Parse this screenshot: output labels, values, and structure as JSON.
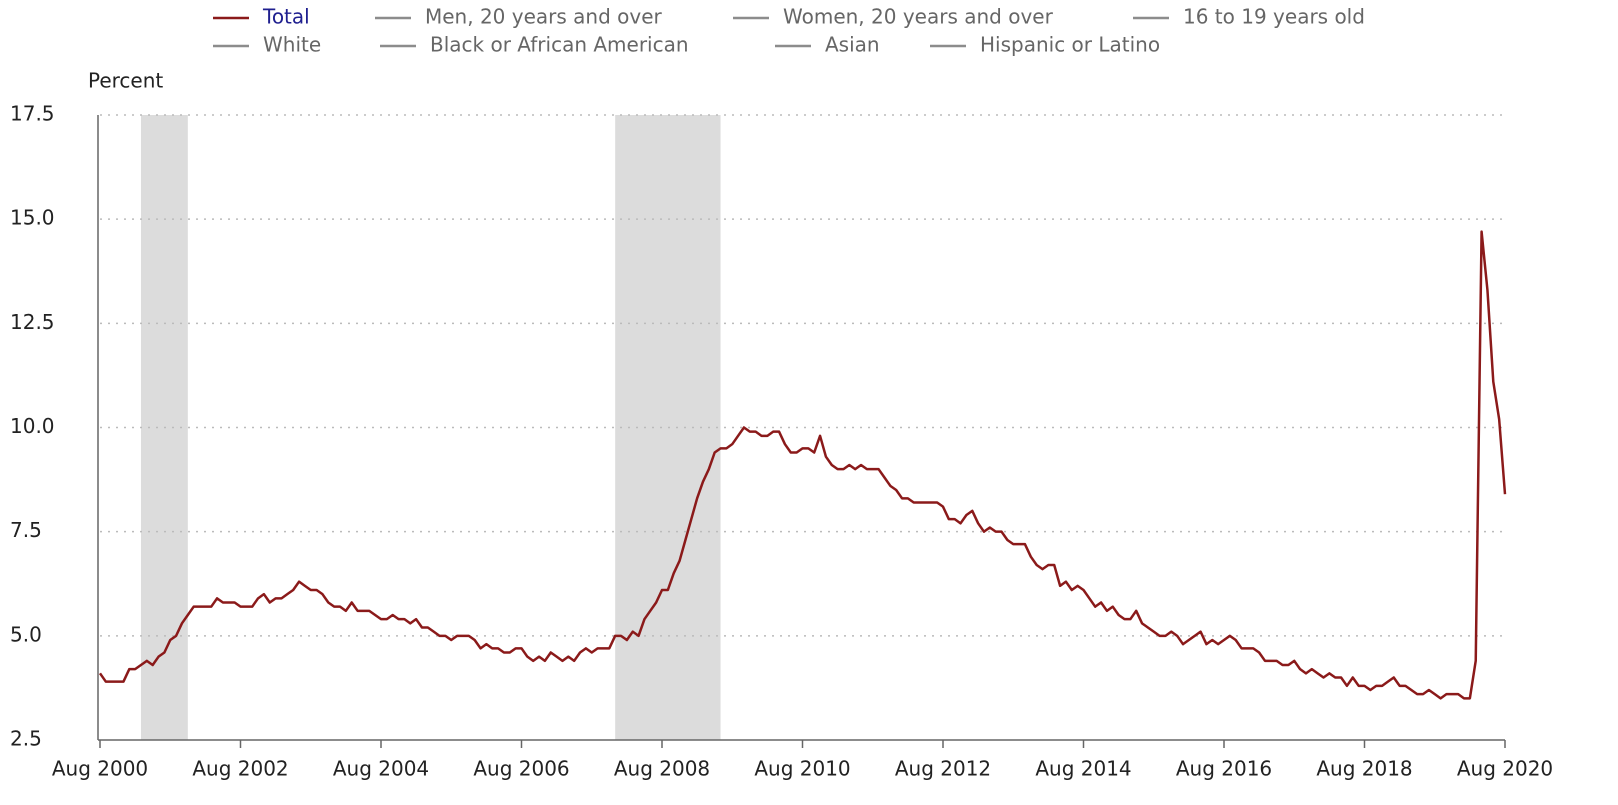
{
  "chart_data": {
    "type": "line",
    "ylabel": "Percent",
    "x": [
      "2000-08",
      "2000-09",
      "2000-10",
      "2000-11",
      "2000-12",
      "2001-01",
      "2001-02",
      "2001-03",
      "2001-04",
      "2001-05",
      "2001-06",
      "2001-07",
      "2001-08",
      "2001-09",
      "2001-10",
      "2001-11",
      "2001-12",
      "2002-01",
      "2002-02",
      "2002-03",
      "2002-04",
      "2002-05",
      "2002-06",
      "2002-07",
      "2002-08",
      "2002-09",
      "2002-10",
      "2002-11",
      "2002-12",
      "2003-01",
      "2003-02",
      "2003-03",
      "2003-04",
      "2003-05",
      "2003-06",
      "2003-07",
      "2003-08",
      "2003-09",
      "2003-10",
      "2003-11",
      "2003-12",
      "2004-01",
      "2004-02",
      "2004-03",
      "2004-04",
      "2004-05",
      "2004-06",
      "2004-07",
      "2004-08",
      "2004-09",
      "2004-10",
      "2004-11",
      "2004-12",
      "2005-01",
      "2005-02",
      "2005-03",
      "2005-04",
      "2005-05",
      "2005-06",
      "2005-07",
      "2005-08",
      "2005-09",
      "2005-10",
      "2005-11",
      "2005-12",
      "2006-01",
      "2006-02",
      "2006-03",
      "2006-04",
      "2006-05",
      "2006-06",
      "2006-07",
      "2006-08",
      "2006-09",
      "2006-10",
      "2006-11",
      "2006-12",
      "2007-01",
      "2007-02",
      "2007-03",
      "2007-04",
      "2007-05",
      "2007-06",
      "2007-07",
      "2007-08",
      "2007-09",
      "2007-10",
      "2007-11",
      "2007-12",
      "2008-01",
      "2008-02",
      "2008-03",
      "2008-04",
      "2008-05",
      "2008-06",
      "2008-07",
      "2008-08",
      "2008-09",
      "2008-10",
      "2008-11",
      "2008-12",
      "2009-01",
      "2009-02",
      "2009-03",
      "2009-04",
      "2009-05",
      "2009-06",
      "2009-07",
      "2009-08",
      "2009-09",
      "2009-10",
      "2009-11",
      "2009-12",
      "2010-01",
      "2010-02",
      "2010-03",
      "2010-04",
      "2010-05",
      "2010-06",
      "2010-07",
      "2010-08",
      "2010-09",
      "2010-10",
      "2010-11",
      "2010-12",
      "2011-01",
      "2011-02",
      "2011-03",
      "2011-04",
      "2011-05",
      "2011-06",
      "2011-07",
      "2011-08",
      "2011-09",
      "2011-10",
      "2011-11",
      "2011-12",
      "2012-01",
      "2012-02",
      "2012-03",
      "2012-04",
      "2012-05",
      "2012-06",
      "2012-07",
      "2012-08",
      "2012-09",
      "2012-10",
      "2012-11",
      "2012-12",
      "2013-01",
      "2013-02",
      "2013-03",
      "2013-04",
      "2013-05",
      "2013-06",
      "2013-07",
      "2013-08",
      "2013-09",
      "2013-10",
      "2013-11",
      "2013-12",
      "2014-01",
      "2014-02",
      "2014-03",
      "2014-04",
      "2014-05",
      "2014-06",
      "2014-07",
      "2014-08",
      "2014-09",
      "2014-10",
      "2014-11",
      "2014-12",
      "2015-01",
      "2015-02",
      "2015-03",
      "2015-04",
      "2015-05",
      "2015-06",
      "2015-07",
      "2015-08",
      "2015-09",
      "2015-10",
      "2015-11",
      "2015-12",
      "2016-01",
      "2016-02",
      "2016-03",
      "2016-04",
      "2016-05",
      "2016-06",
      "2016-07",
      "2016-08",
      "2016-09",
      "2016-10",
      "2016-11",
      "2016-12",
      "2017-01",
      "2017-02",
      "2017-03",
      "2017-04",
      "2017-05",
      "2017-06",
      "2017-07",
      "2017-08",
      "2017-09",
      "2017-10",
      "2017-11",
      "2017-12",
      "2018-01",
      "2018-02",
      "2018-03",
      "2018-04",
      "2018-05",
      "2018-06",
      "2018-07",
      "2018-08",
      "2018-09",
      "2018-10",
      "2018-11",
      "2018-12",
      "2019-01",
      "2019-02",
      "2019-03",
      "2019-04",
      "2019-05",
      "2019-06",
      "2019-07",
      "2019-08",
      "2019-09",
      "2019-10",
      "2019-11",
      "2019-12",
      "2020-01",
      "2020-02",
      "2020-03",
      "2020-04",
      "2020-05",
      "2020-06",
      "2020-07",
      "2020-08"
    ],
    "series": [
      {
        "name": "Total",
        "color": "#8b1a1a",
        "values": [
          4.1,
          3.9,
          3.9,
          3.9,
          3.9,
          4.2,
          4.2,
          4.3,
          4.4,
          4.3,
          4.5,
          4.6,
          4.9,
          5.0,
          5.3,
          5.5,
          5.7,
          5.7,
          5.7,
          5.7,
          5.9,
          5.8,
          5.8,
          5.8,
          5.7,
          5.7,
          5.7,
          5.9,
          6.0,
          5.8,
          5.9,
          5.9,
          6.0,
          6.1,
          6.3,
          6.2,
          6.1,
          6.1,
          6.0,
          5.8,
          5.7,
          5.7,
          5.6,
          5.8,
          5.6,
          5.6,
          5.6,
          5.5,
          5.4,
          5.4,
          5.5,
          5.4,
          5.4,
          5.3,
          5.4,
          5.2,
          5.2,
          5.1,
          5.0,
          5.0,
          4.9,
          5.0,
          5.0,
          5.0,
          4.9,
          4.7,
          4.8,
          4.7,
          4.7,
          4.6,
          4.6,
          4.7,
          4.7,
          4.5,
          4.4,
          4.5,
          4.4,
          4.6,
          4.5,
          4.4,
          4.5,
          4.4,
          4.6,
          4.7,
          4.6,
          4.7,
          4.7,
          4.7,
          5.0,
          5.0,
          4.9,
          5.1,
          5.0,
          5.4,
          5.6,
          5.8,
          6.1,
          6.1,
          6.5,
          6.8,
          7.3,
          7.8,
          8.3,
          8.7,
          9.0,
          9.4,
          9.5,
          9.5,
          9.6,
          9.8,
          10.0,
          9.9,
          9.9,
          9.8,
          9.8,
          9.9,
          9.9,
          9.6,
          9.4,
          9.4,
          9.5,
          9.5,
          9.4,
          9.8,
          9.3,
          9.1,
          9.0,
          9.0,
          9.1,
          9.0,
          9.1,
          9.0,
          9.0,
          9.0,
          8.8,
          8.6,
          8.5,
          8.3,
          8.3,
          8.2,
          8.2,
          8.2,
          8.2,
          8.2,
          8.1,
          7.8,
          7.8,
          7.7,
          7.9,
          8.0,
          7.7,
          7.5,
          7.6,
          7.5,
          7.5,
          7.3,
          7.2,
          7.2,
          7.2,
          6.9,
          6.7,
          6.6,
          6.7,
          6.7,
          6.2,
          6.3,
          6.1,
          6.2,
          6.1,
          5.9,
          5.7,
          5.8,
          5.6,
          5.7,
          5.5,
          5.4,
          5.4,
          5.6,
          5.3,
          5.2,
          5.1,
          5.0,
          5.0,
          5.1,
          5.0,
          4.8,
          4.9,
          5.0,
          5.1,
          4.8,
          4.9,
          4.8,
          4.9,
          5.0,
          4.9,
          4.7,
          4.7,
          4.7,
          4.6,
          4.4,
          4.4,
          4.4,
          4.3,
          4.3,
          4.4,
          4.2,
          4.1,
          4.2,
          4.1,
          4.0,
          4.1,
          4.0,
          4.0,
          3.8,
          4.0,
          3.8,
          3.8,
          3.7,
          3.8,
          3.8,
          3.9,
          4.0,
          3.8,
          3.8,
          3.7,
          3.6,
          3.6,
          3.7,
          3.6,
          3.5,
          3.6,
          3.6,
          3.6,
          3.5,
          3.5,
          4.4,
          14.7,
          13.3,
          11.1,
          10.2,
          8.4
        ]
      }
    ],
    "inactive_legend": [
      {
        "name": "Men, 20 years and over",
        "color": "#8c8c8c"
      },
      {
        "name": "Women, 20 years and over",
        "color": "#8c8c8c"
      },
      {
        "name": "16 to 19 years old",
        "color": "#8c8c8c"
      },
      {
        "name": "White",
        "color": "#8c8c8c"
      },
      {
        "name": "Black or African American",
        "color": "#8c8c8c"
      },
      {
        "name": "Asian",
        "color": "#8c8c8c"
      },
      {
        "name": "Hispanic or Latino",
        "color": "#8c8c8c"
      }
    ],
    "recessions": [
      [
        "2001-03",
        "2001-11"
      ],
      [
        "2007-12",
        "2009-06"
      ]
    ],
    "recession_color": "#dcdcdc",
    "xticks": [
      {
        "value": "2000-08",
        "label": "Aug 2000"
      },
      {
        "value": "2002-08",
        "label": "Aug 2002"
      },
      {
        "value": "2004-08",
        "label": "Aug 2004"
      },
      {
        "value": "2006-08",
        "label": "Aug 2006"
      },
      {
        "value": "2008-08",
        "label": "Aug 2008"
      },
      {
        "value": "2010-08",
        "label": "Aug 2010"
      },
      {
        "value": "2012-08",
        "label": "Aug 2012"
      },
      {
        "value": "2014-08",
        "label": "Aug 2014"
      },
      {
        "value": "2016-08",
        "label": "Aug 2016"
      },
      {
        "value": "2018-08",
        "label": "Aug 2018"
      },
      {
        "value": "2020-08",
        "label": "Aug 2020"
      }
    ],
    "ylim": [
      2.5,
      17.5
    ],
    "yticks": [
      2.5,
      {
        "value": 5,
        "label": "5.0"
      },
      7.5,
      {
        "value": 10,
        "label": "10.0"
      },
      12.5,
      {
        "value": 15,
        "label": "15.0"
      },
      17.5
    ],
    "grid": true
  }
}
